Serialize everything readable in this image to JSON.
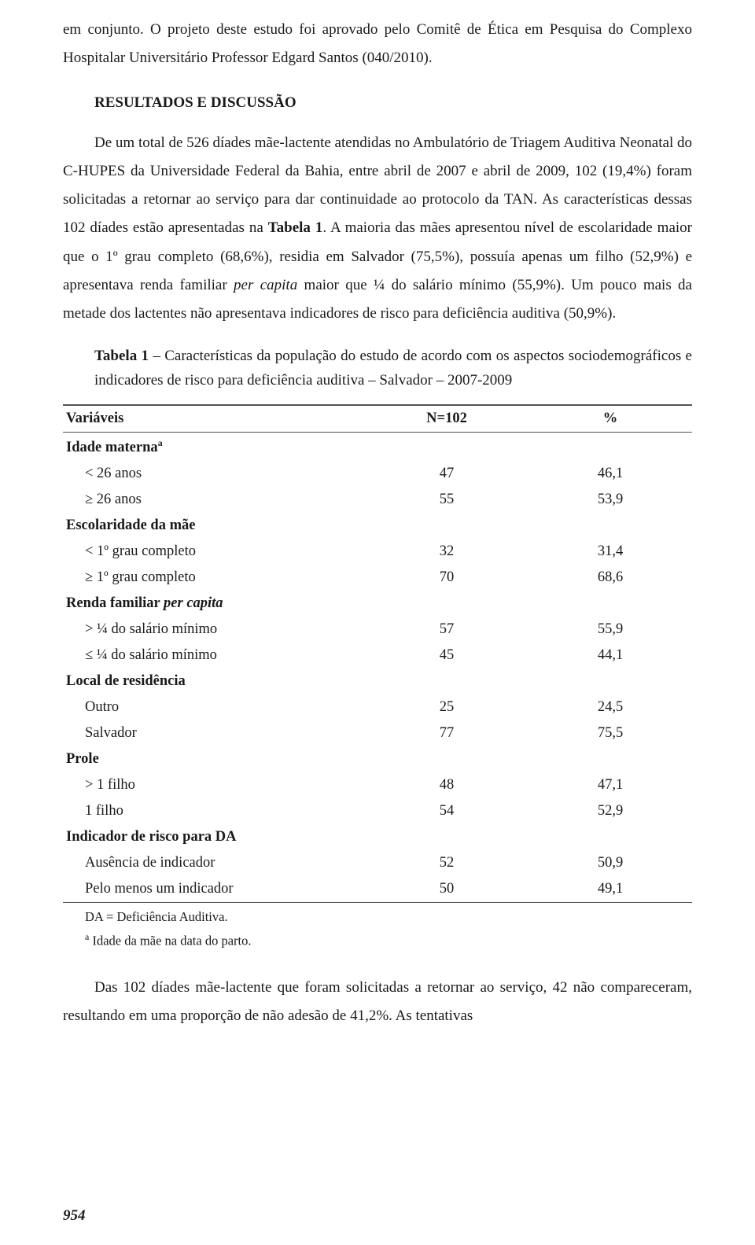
{
  "text_color": "#1a1a1a",
  "background_color": "#ffffff",
  "table_border_color": "#555555",
  "font_family": "Georgia, 'Times New Roman', serif",
  "base_font_size_pt": 14,
  "intro_para": "em conjunto. O projeto deste estudo foi aprovado pelo Comitê de Ética em Pesquisa do Complexo Hospitalar Universitário Professor Edgard Santos (040/2010).",
  "section_heading": "RESULTADOS E DISCUSSÃO",
  "results_para_part1": "De um total de 526 díades mãe-lactente atendidas no Ambulatório de Triagem Auditiva Neonatal do C-HUPES da Universidade Federal da Bahia, entre abril de 2007 e abril de 2009, 102 (19,4%) foram solicitadas a retornar ao serviço para dar continuidade ao protocolo da TAN. As características dessas 102 díades estão apresentadas na ",
  "results_tabela_ref": "Tabela 1",
  "results_para_part2": ". A maioria das mães apresentou nível de escolaridade maior que o 1º grau completo (68,6%), residia em Salvador (75,5%), possuía apenas um filho (52,9%) e apresentava renda familiar ",
  "results_per_capita": "per capita",
  "results_para_part3": " maior que ¼ do salário mínimo (55,9%). Um pouco mais da metade dos lactentes não apresentava indicadores de risco para deficiência auditiva (50,9%).",
  "table_caption_bold": "Tabela 1",
  "table_caption_rest": " – Características da população do estudo de acordo com os aspectos sociodemográficos e indicadores de risco para deficiência auditiva – Salvador – 2007-2009",
  "table": {
    "type": "table",
    "columns": [
      "Variáveis",
      "N=102",
      "%"
    ],
    "col_widths": [
      "48%",
      "26%",
      "26%"
    ],
    "col_align": [
      "left",
      "center",
      "center"
    ],
    "groups": [
      {
        "label": "Idade materna",
        "label_sup": "a",
        "rows": [
          {
            "label": "< 26 anos",
            "n": "47",
            "pct": "46,1"
          },
          {
            "label": "≥ 26 anos",
            "n": "55",
            "pct": "53,9"
          }
        ]
      },
      {
        "label": "Escolaridade da mãe",
        "rows": [
          {
            "label": "< 1º grau completo",
            "n": "32",
            "pct": "31,4"
          },
          {
            "label": "≥ 1º grau completo",
            "n": "70",
            "pct": "68,6"
          }
        ]
      },
      {
        "label": "Renda familiar ",
        "label_italic": "per capita",
        "rows": [
          {
            "label": "> ¼ do salário mínimo",
            "n": "57",
            "pct": "55,9"
          },
          {
            "label": "≤ ¼ do salário mínimo",
            "n": "45",
            "pct": "44,1"
          }
        ]
      },
      {
        "label": "Local de residência",
        "rows": [
          {
            "label": "Outro",
            "n": "25",
            "pct": "24,5"
          },
          {
            "label": "Salvador",
            "n": "77",
            "pct": "75,5"
          }
        ]
      },
      {
        "label": "Prole",
        "rows": [
          {
            "label": "> 1 filho",
            "n": "48",
            "pct": "47,1"
          },
          {
            "label": "1 filho",
            "n": "54",
            "pct": "52,9"
          }
        ]
      },
      {
        "label": "Indicador de risco para DA",
        "rows": [
          {
            "label": "Ausência de indicador",
            "n": "52",
            "pct": "50,9"
          },
          {
            "label": "Pelo menos um indicador",
            "n": "50",
            "pct": "49,1"
          }
        ]
      }
    ]
  },
  "footnote1": "DA = Deficiência Auditiva.",
  "footnote2_sup": "a",
  "footnote2": " Idade da mãe na data do parto.",
  "closing_para": "Das 102 díades mãe-lactente que foram solicitadas a retornar ao serviço, 42 não compareceram, resultando em uma proporção de não adesão de 41,2%. As tentativas",
  "page_number": "954"
}
